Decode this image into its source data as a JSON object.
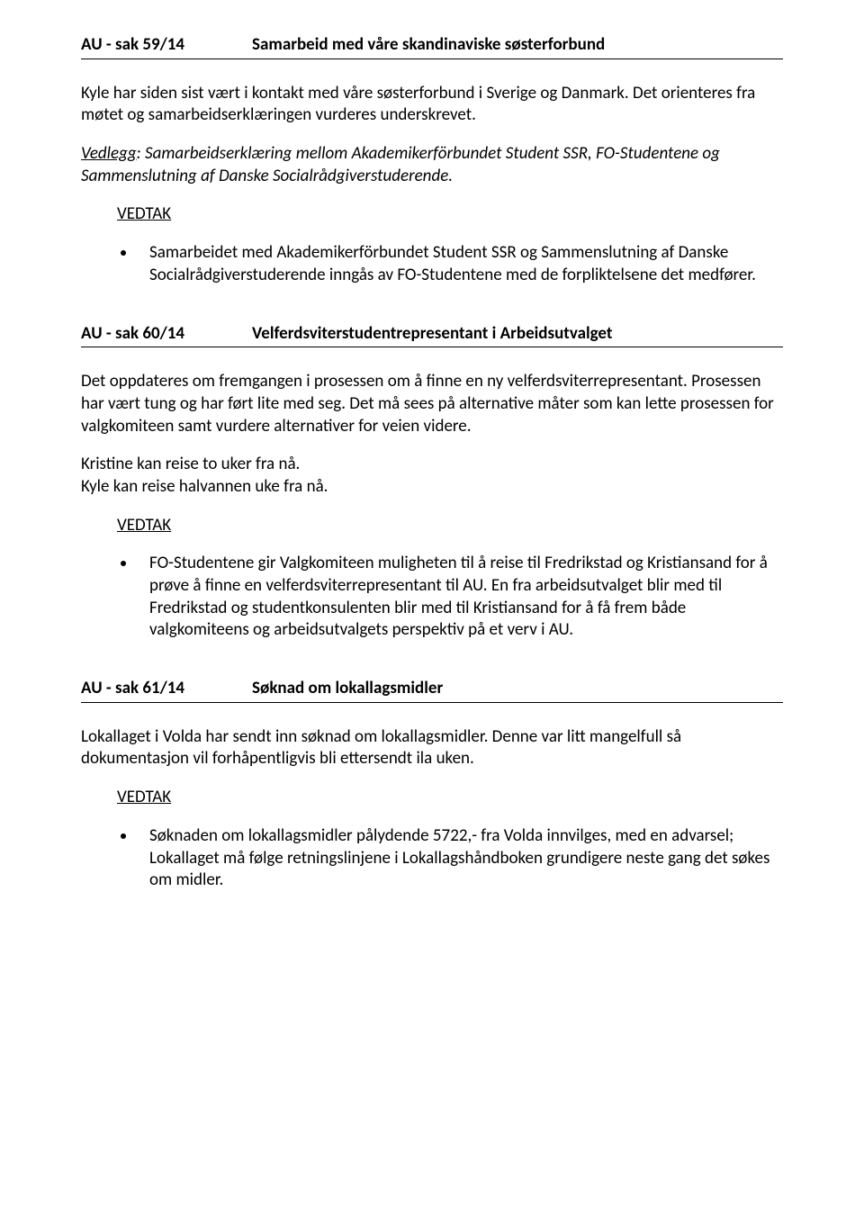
{
  "sak59": {
    "label": "AU - sak 59/14",
    "title": "Samarbeid med våre skandinaviske søsterforbund",
    "para1": "Kyle har siden sist vært i kontakt med våre søsterforbund i Sverige og Danmark. Det orienteres fra møtet og samarbeidserklæringen vurderes underskrevet.",
    "vedlegg_label": "Vedlegg",
    "vedlegg_text": ": Samarbeidserklæring mellom Akademikerförbundet Student SSR, FO-Studentene og Sammenslutning af Danske Socialrådgiverstuderende.",
    "vedtak_label": "VEDTAK",
    "bullet": "Samarbeidet med Akademikerförbundet Student SSR og Sammenslutning af Danske Socialrådgiverstuderende inngås av FO-Studentene med de forpliktelsene det medfører."
  },
  "sak60": {
    "label": "AU - sak 60/14",
    "title": "Velferdsviterstudentrepresentant i Arbeidsutvalget",
    "para1": "Det oppdateres om fremgangen i prosessen om å finne en ny velferdsviterrepresentant. Prosessen har vært tung og har ført lite med seg. Det må sees på alternative måter som kan lette prosessen for valgkomiteen samt vurdere alternativer for veien videre.",
    "para2a": "Kristine kan reise to uker fra nå.",
    "para2b": "Kyle kan reise halvannen uke fra nå.",
    "vedtak_label": "VEDTAK",
    "bullet": "FO-Studentene gir Valgkomiteen muligheten til å reise til Fredrikstad og Kristiansand for å prøve å finne en velferdsviterrepresentant til AU. En fra arbeidsutvalget blir med til Fredrikstad og studentkonsulenten blir med til Kristiansand for å få frem både valgkomiteens og arbeidsutvalgets perspektiv på et verv i AU."
  },
  "sak61": {
    "label": "AU - sak 61/14",
    "title": "Søknad om lokallagsmidler",
    "para1": "Lokallaget i Volda har sendt inn søknad om lokallagsmidler. Denne var litt mangelfull så dokumentasjon vil forhåpentligvis bli ettersendt ila uken.",
    "vedtak_label": "VEDTAK",
    "bullet": "Søknaden om lokallagsmidler pålydende 5722,- fra Volda innvilges, med en advarsel; Lokallaget må følge retningslinjene i Lokallagshåndboken grundigere neste gang det søkes om midler."
  }
}
